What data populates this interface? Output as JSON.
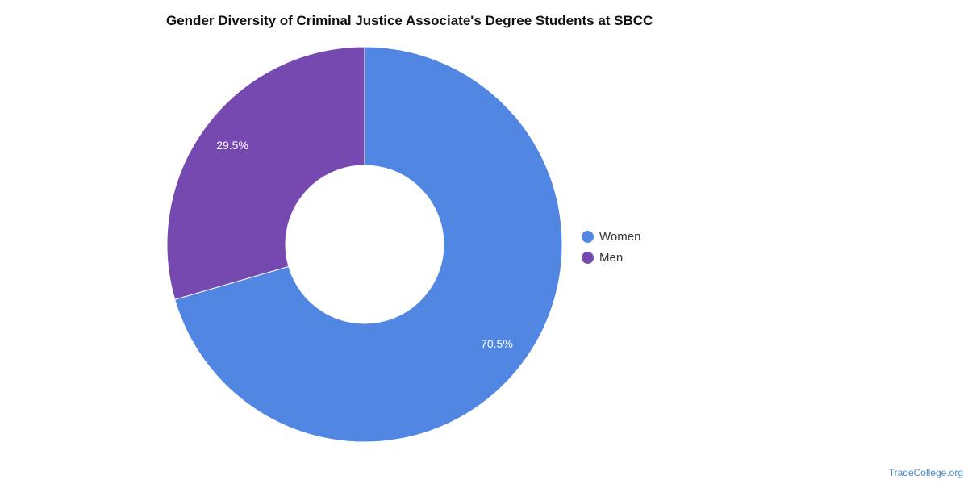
{
  "chart_data": {
    "type": "pie",
    "title": "Gender Diversity of Criminal Justice Associate's Degree Students at SBCC",
    "categories": [
      "Women",
      "Men"
    ],
    "values": [
      70.5,
      29.5
    ],
    "value_labels": [
      "70.5%",
      "29.5%"
    ],
    "colors": [
      "#5286e3",
      "#7549b0"
    ],
    "donut": true,
    "legend_position": "right"
  },
  "legend": [
    {
      "label": "Women",
      "color": "#5286e3"
    },
    {
      "label": "Men",
      "color": "#7549b0"
    }
  ],
  "source": "TradeCollege.org"
}
